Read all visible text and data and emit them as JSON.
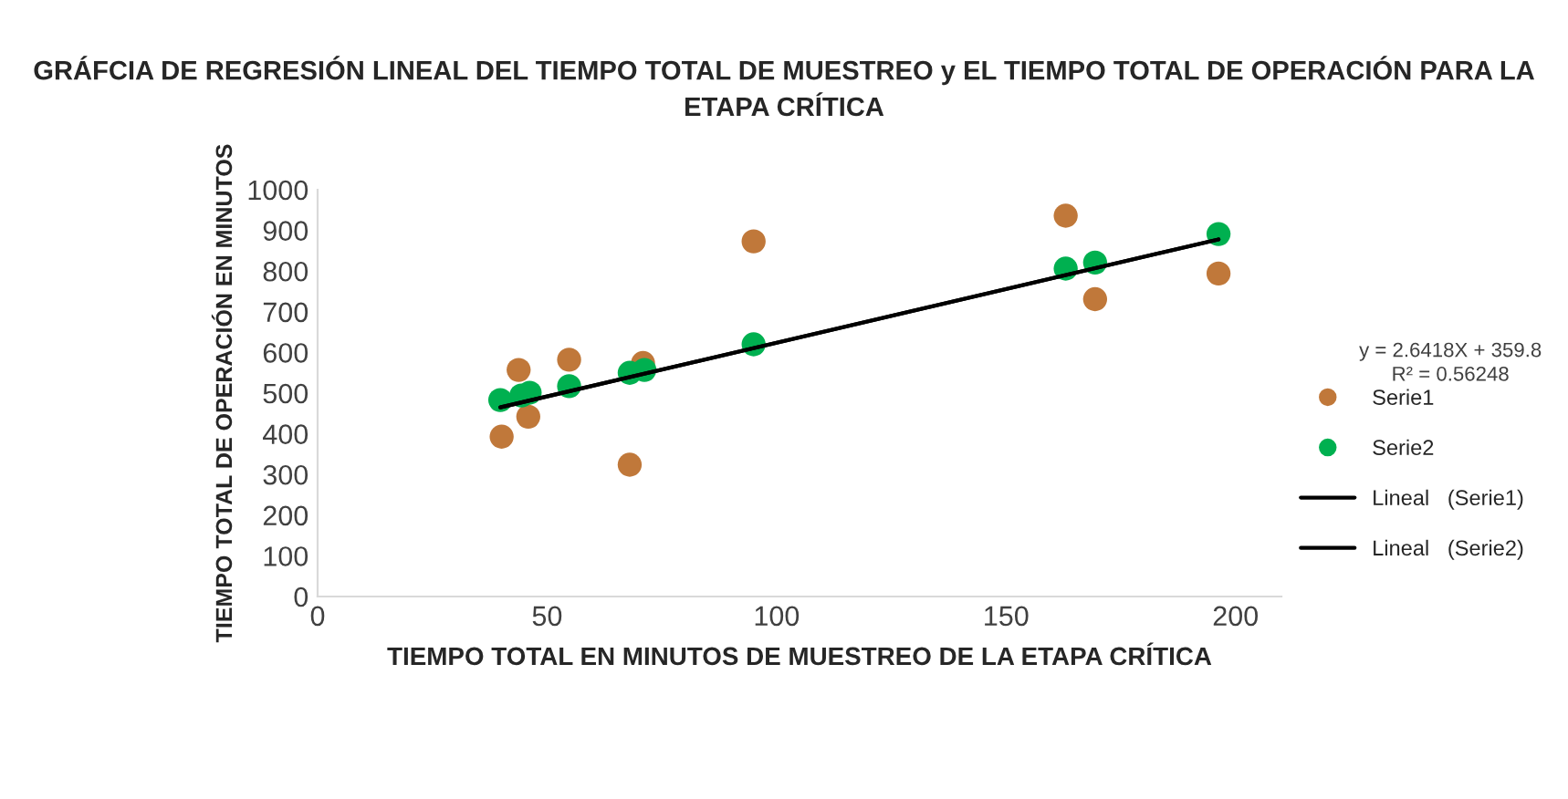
{
  "chart_data": {
    "type": "scatter",
    "title": "GRÁFCIA DE REGRESIÓN LINEAL DEL TIEMPO TOTAL DE MUESTREO y EL TIEMPO TOTAL DE OPERACIÓN PARA LA ETAPA CRÍTICA",
    "xlabel": "TIEMPO TOTAL EN MINUTOS DE MUESTREO DE LA ETAPA CRÍTICA",
    "ylabel": "TIEMPO TOTAL DE OPERACIÓN EN MINUTOS",
    "annotations": [
      "y = 2.6418X + 359.8",
      "R² = 0.56248"
    ],
    "xlim": [
      0,
      210
    ],
    "xticks": [
      0,
      50,
      100,
      150,
      200
    ],
    "ylim": [
      0,
      1000
    ],
    "yticks": [
      0,
      100,
      200,
      300,
      400,
      500,
      600,
      700,
      800,
      900,
      1000
    ],
    "grid": false,
    "legend": "right",
    "marker": "circle",
    "series": [
      {
        "name": "Serie1",
        "color": "#c0783a",
        "x": [
          40.1,
          43.8,
          45.9,
          54.8,
          68,
          70.9,
          95,
          163,
          169.4,
          196.3
        ],
        "values": [
          393,
          557,
          442,
          582,
          324,
          574,
          873,
          936,
          731,
          794
        ]
      },
      {
        "name": "Serie2",
        "color": "#00b050",
        "x": [
          39.8,
          44.4,
          46.2,
          54.8,
          68,
          71.2,
          95,
          163,
          169.4,
          196.3
        ],
        "values": [
          483,
          494,
          501,
          517,
          550,
          557,
          620,
          806,
          821,
          891
        ]
      },
      {
        "name": "Lineal   (Serie1)",
        "type": "line",
        "marker": "none",
        "color": "#000000",
        "line_style": "solid",
        "x": [
          39.8,
          196.3
        ],
        "values": [
          465,
          878
        ]
      },
      {
        "name": "Lineal   (Serie2)",
        "type": "line",
        "marker": "none",
        "color": "#000000",
        "line_style": "solid",
        "x": [
          39.8,
          196.3
        ],
        "values": [
          465,
          878
        ]
      }
    ]
  }
}
